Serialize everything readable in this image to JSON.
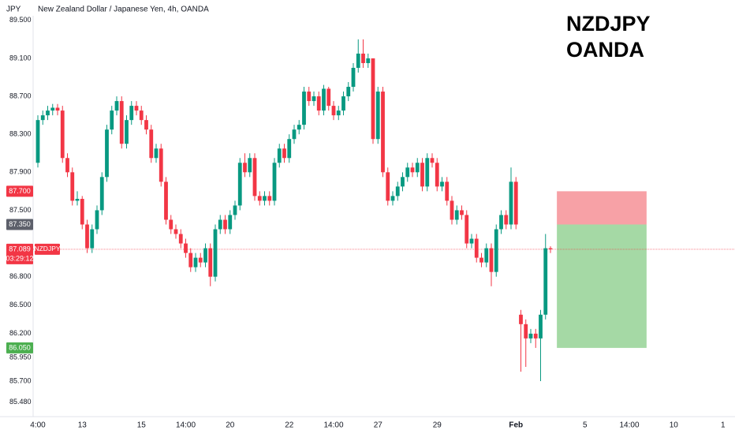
{
  "chart_data": {
    "type": "candlestick",
    "title": "New Zealand Dollar / Japanese Yen, 4h, OANDA",
    "currency": "JPY",
    "annotation": [
      "NZDJPY",
      "OANDA"
    ],
    "up_color": "#089981",
    "down_color": "#f23645",
    "xlim": [
      -0.96,
      141.44
    ],
    "ylim": [
      85.326,
      89.565
    ],
    "yticks": [
      {
        "value": 89.5,
        "label": "89.500"
      },
      {
        "value": 89.1,
        "label": "89.100"
      },
      {
        "value": 88.7,
        "label": "88.700"
      },
      {
        "value": 88.3,
        "label": "88.300"
      },
      {
        "value": 87.9,
        "label": "87.900"
      },
      {
        "value": 87.5,
        "label": "87.500"
      },
      {
        "value": 86.8,
        "label": "86.800"
      },
      {
        "value": 86.5,
        "label": "86.500"
      },
      {
        "value": 86.2,
        "label": "86.200"
      },
      {
        "value": 85.95,
        "label": "85.950"
      },
      {
        "value": 85.7,
        "label": "85.700"
      },
      {
        "value": 85.48,
        "label": "85.480"
      }
    ],
    "xticks": [
      {
        "value": 0,
        "label": "4:00"
      },
      {
        "value": 9,
        "label": "13"
      },
      {
        "value": 21,
        "label": "15"
      },
      {
        "value": 30,
        "label": "14:00"
      },
      {
        "value": 39,
        "label": "20"
      },
      {
        "value": 51,
        "label": "22"
      },
      {
        "value": 60,
        "label": "14:00"
      },
      {
        "value": 69,
        "label": "27"
      },
      {
        "value": 81,
        "label": "29"
      },
      {
        "value": 97,
        "label": "Feb"
      },
      {
        "value": 111,
        "label": "5"
      },
      {
        "value": 120,
        "label": "14:00"
      },
      {
        "value": 129,
        "label": "10"
      },
      {
        "value": 139,
        "label": "1"
      }
    ],
    "candles": [
      [
        88.0,
        88.5,
        87.95,
        88.45
      ],
      [
        88.45,
        88.55,
        88.4,
        88.5
      ],
      [
        88.5,
        88.6,
        88.45,
        88.55
      ],
      [
        88.55,
        88.62,
        88.5,
        88.58
      ],
      [
        88.58,
        88.62,
        88.5,
        88.55
      ],
      [
        88.55,
        88.6,
        88.0,
        88.05
      ],
      [
        88.05,
        88.1,
        87.85,
        87.9
      ],
      [
        87.9,
        87.95,
        87.55,
        87.6
      ],
      [
        87.6,
        87.7,
        87.55,
        87.62
      ],
      [
        87.62,
        87.65,
        87.3,
        87.35
      ],
      [
        87.35,
        87.4,
        87.05,
        87.1
      ],
      [
        87.1,
        87.35,
        87.05,
        87.3
      ],
      [
        87.3,
        87.55,
        87.25,
        87.5
      ],
      [
        87.5,
        87.9,
        87.45,
        87.85
      ],
      [
        87.85,
        88.4,
        87.8,
        88.35
      ],
      [
        88.35,
        88.6,
        88.3,
        88.55
      ],
      [
        88.55,
        88.7,
        88.5,
        88.65
      ],
      [
        88.65,
        88.7,
        88.15,
        88.2
      ],
      [
        88.2,
        88.5,
        88.15,
        88.45
      ],
      [
        88.45,
        88.65,
        88.4,
        88.6
      ],
      [
        88.6,
        88.65,
        88.5,
        88.55
      ],
      [
        88.55,
        88.6,
        88.4,
        88.45
      ],
      [
        88.45,
        88.5,
        88.3,
        88.35
      ],
      [
        88.35,
        88.4,
        88.0,
        88.05
      ],
      [
        88.05,
        88.2,
        88.0,
        88.15
      ],
      [
        88.15,
        88.2,
        87.75,
        87.8
      ],
      [
        87.8,
        87.85,
        87.35,
        87.4
      ],
      [
        87.4,
        87.45,
        87.25,
        87.3
      ],
      [
        87.3,
        87.35,
        87.2,
        87.25
      ],
      [
        87.25,
        87.3,
        87.1,
        87.15
      ],
      [
        87.15,
        87.2,
        87.0,
        87.05
      ],
      [
        87.05,
        87.1,
        86.85,
        86.9
      ],
      [
        86.9,
        87.05,
        86.85,
        87.0
      ],
      [
        87.0,
        87.05,
        86.9,
        86.95
      ],
      [
        86.95,
        87.15,
        86.9,
        87.1
      ],
      [
        87.1,
        87.15,
        86.7,
        86.8
      ],
      [
        86.8,
        87.35,
        86.75,
        87.3
      ],
      [
        87.3,
        87.45,
        87.25,
        87.4
      ],
      [
        87.4,
        87.45,
        87.25,
        87.3
      ],
      [
        87.3,
        87.5,
        87.25,
        87.45
      ],
      [
        87.45,
        87.6,
        87.4,
        87.55
      ],
      [
        87.55,
        88.05,
        87.5,
        88.0
      ],
      [
        88.0,
        88.1,
        87.85,
        87.9
      ],
      [
        87.9,
        88.1,
        87.85,
        88.05
      ],
      [
        88.05,
        88.1,
        87.6,
        87.65
      ],
      [
        87.65,
        87.7,
        87.55,
        87.6
      ],
      [
        87.6,
        87.7,
        87.55,
        87.65
      ],
      [
        87.65,
        87.7,
        87.55,
        87.6
      ],
      [
        87.6,
        88.05,
        87.55,
        88.0
      ],
      [
        88.0,
        88.2,
        87.95,
        88.15
      ],
      [
        88.15,
        88.2,
        88.0,
        88.05
      ],
      [
        88.05,
        88.3,
        88.0,
        88.25
      ],
      [
        88.25,
        88.4,
        88.2,
        88.35
      ],
      [
        88.35,
        88.45,
        88.3,
        88.4
      ],
      [
        88.4,
        88.8,
        88.35,
        88.75
      ],
      [
        88.75,
        88.8,
        88.6,
        88.65
      ],
      [
        88.65,
        88.75,
        88.6,
        88.7
      ],
      [
        88.7,
        88.75,
        88.5,
        88.55
      ],
      [
        88.55,
        88.82,
        88.5,
        88.78
      ],
      [
        88.78,
        88.8,
        88.55,
        88.6
      ],
      [
        88.6,
        88.65,
        88.45,
        88.5
      ],
      [
        88.5,
        88.6,
        88.45,
        88.55
      ],
      [
        88.55,
        88.75,
        88.5,
        88.7
      ],
      [
        88.7,
        88.85,
        88.65,
        88.8
      ],
      [
        88.8,
        89.05,
        88.75,
        89.0
      ],
      [
        89.0,
        89.3,
        88.95,
        89.15
      ],
      [
        89.15,
        89.3,
        89.0,
        89.05
      ],
      [
        89.05,
        89.15,
        89.0,
        89.1
      ],
      [
        89.1,
        89.1,
        88.2,
        88.25
      ],
      [
        88.25,
        88.8,
        88.2,
        88.75
      ],
      [
        88.75,
        88.8,
        87.85,
        87.9
      ],
      [
        87.9,
        87.95,
        87.55,
        87.6
      ],
      [
        87.6,
        87.7,
        87.55,
        87.65
      ],
      [
        87.65,
        87.8,
        87.6,
        87.75
      ],
      [
        87.75,
        87.9,
        87.7,
        87.85
      ],
      [
        87.85,
        88.0,
        87.8,
        87.95
      ],
      [
        87.95,
        88.0,
        87.85,
        87.9
      ],
      [
        87.9,
        88.05,
        87.85,
        88.0
      ],
      [
        88.0,
        88.05,
        87.7,
        87.75
      ],
      [
        87.75,
        88.1,
        87.7,
        88.05
      ],
      [
        88.05,
        88.1,
        87.95,
        88.0
      ],
      [
        88.0,
        88.05,
        87.7,
        87.75
      ],
      [
        87.75,
        87.85,
        87.7,
        87.8
      ],
      [
        87.8,
        87.85,
        87.55,
        87.6
      ],
      [
        87.6,
        87.65,
        87.35,
        87.4
      ],
      [
        87.4,
        87.55,
        87.35,
        87.5
      ],
      [
        87.5,
        87.55,
        87.4,
        87.45
      ],
      [
        87.45,
        87.5,
        87.1,
        87.15
      ],
      [
        87.15,
        87.25,
        87.1,
        87.2
      ],
      [
        87.2,
        87.25,
        86.95,
        87.0
      ],
      [
        87.0,
        87.05,
        86.9,
        86.95
      ],
      [
        86.95,
        87.15,
        86.9,
        87.1
      ],
      [
        87.1,
        87.15,
        86.7,
        86.85
      ],
      [
        86.85,
        87.35,
        86.8,
        87.3
      ],
      [
        87.3,
        87.5,
        87.25,
        87.45
      ],
      [
        87.45,
        87.5,
        87.3,
        87.35
      ],
      [
        87.35,
        87.95,
        87.3,
        87.8
      ],
      [
        87.8,
        87.85,
        87.3,
        87.35
      ],
      [
        86.4,
        86.45,
        85.8,
        86.3
      ],
      [
        86.3,
        86.35,
        85.85,
        86.15
      ],
      [
        86.15,
        86.25,
        86.1,
        86.2
      ],
      [
        86.2,
        86.25,
        86.05,
        86.15
      ],
      [
        86.15,
        86.45,
        85.7,
        86.4
      ],
      [
        86.4,
        87.25,
        86.35,
        87.1
      ],
      [
        87.1,
        87.12,
        87.05,
        87.089
      ]
    ],
    "current_price": {
      "value": 87.089,
      "label": "87.089",
      "symbol": "NZDJPY",
      "countdown": "03:29:12",
      "color": "#f23645"
    },
    "position": {
      "x_range": [
        105.3,
        123.5
      ],
      "stop": {
        "value": 87.7,
        "label": "87.700",
        "color": "#f23645",
        "fill": "#f7a1a6"
      },
      "entry": {
        "value": 87.35,
        "label": "87.350",
        "color": "#5d606b"
      },
      "target": {
        "value": 86.05,
        "label": "86.050",
        "color": "#4caf50",
        "fill": "#a5d9a5"
      }
    }
  }
}
